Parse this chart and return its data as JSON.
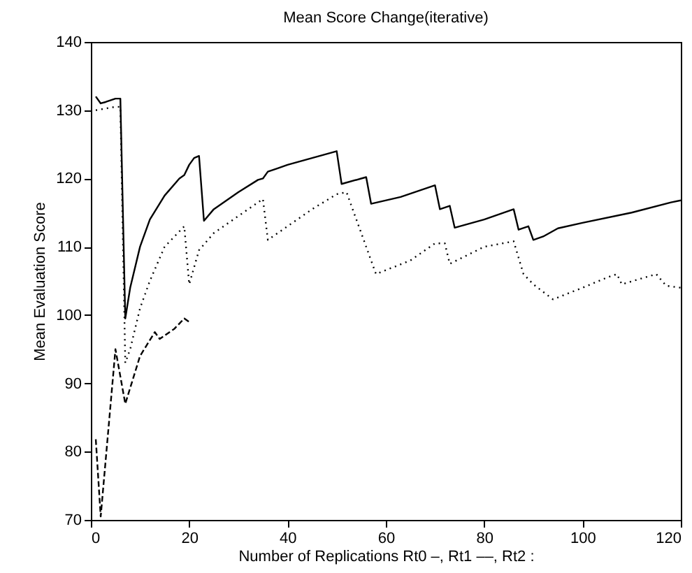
{
  "chart_data": {
    "type": "line",
    "title": "Mean Score Change(iterative)",
    "xlabel": "Number of Replications Rt0 –, Rt1 ––, Rt2 :",
    "ylabel": "Mean Evaluation Score",
    "xlim": [
      0,
      120
    ],
    "xticks": [
      0,
      20,
      40,
      60,
      80,
      100,
      120
    ],
    "ylim": [
      70,
      140
    ],
    "yticks": [
      70,
      80,
      90,
      100,
      110,
      120,
      130,
      140
    ],
    "grid": false,
    "marker": "none",
    "series": [
      {
        "color": "#000000",
        "line_style": "solid",
        "x": [
          1,
          2,
          3,
          5,
          6,
          7,
          8,
          10,
          12,
          15,
          18,
          19,
          20,
          21,
          22,
          23,
          25,
          30,
          34,
          35,
          36,
          38,
          40,
          45,
          50,
          51,
          56,
          57,
          63,
          70,
          71,
          73,
          74,
          80,
          86,
          87,
          89,
          90,
          92,
          95,
          100,
          110,
          118,
          120
        ],
        "values": [
          132,
          131,
          131.2,
          131.7,
          131.7,
          99.5,
          104,
          110,
          114,
          117.5,
          120,
          120.5,
          122,
          123,
          123.3,
          113.8,
          115.5,
          118,
          119.8,
          120,
          121,
          121.5,
          122,
          123,
          124,
          119.2,
          120.2,
          116.3,
          117.3,
          119,
          115.5,
          116,
          112.8,
          114,
          115.5,
          112.5,
          113,
          111,
          111.5,
          112.7,
          113.5,
          115,
          116.5,
          116.8
        ]
      },
      {
        "color": "#000000",
        "line_style": "dotted",
        "x": [
          1,
          5,
          6,
          7,
          8,
          10,
          12,
          15,
          19,
          20,
          22,
          25,
          30,
          35,
          36,
          40,
          45,
          50,
          52,
          55,
          58,
          65,
          70,
          72,
          73,
          80,
          86,
          88,
          90,
          94,
          100,
          105,
          107,
          108,
          115,
          117,
          120
        ],
        "values": [
          130,
          130.5,
          130.5,
          93,
          95,
          101,
          105,
          110,
          113,
          104.5,
          109.5,
          112,
          114.5,
          117,
          111,
          113,
          115.5,
          117.7,
          118,
          112,
          106,
          108,
          110.5,
          110.5,
          107.5,
          110,
          110.8,
          106,
          104.5,
          102.3,
          104,
          105.5,
          106,
          104.5,
          106,
          104.3,
          104
        ]
      },
      {
        "color": "#000000",
        "line_style": "dashed",
        "x": [
          1,
          2,
          5,
          7,
          10,
          13,
          14,
          17,
          19,
          20
        ],
        "values": [
          81.8,
          70.5,
          95,
          87,
          94,
          97.5,
          96.5,
          98,
          99.5,
          99
        ]
      }
    ]
  }
}
